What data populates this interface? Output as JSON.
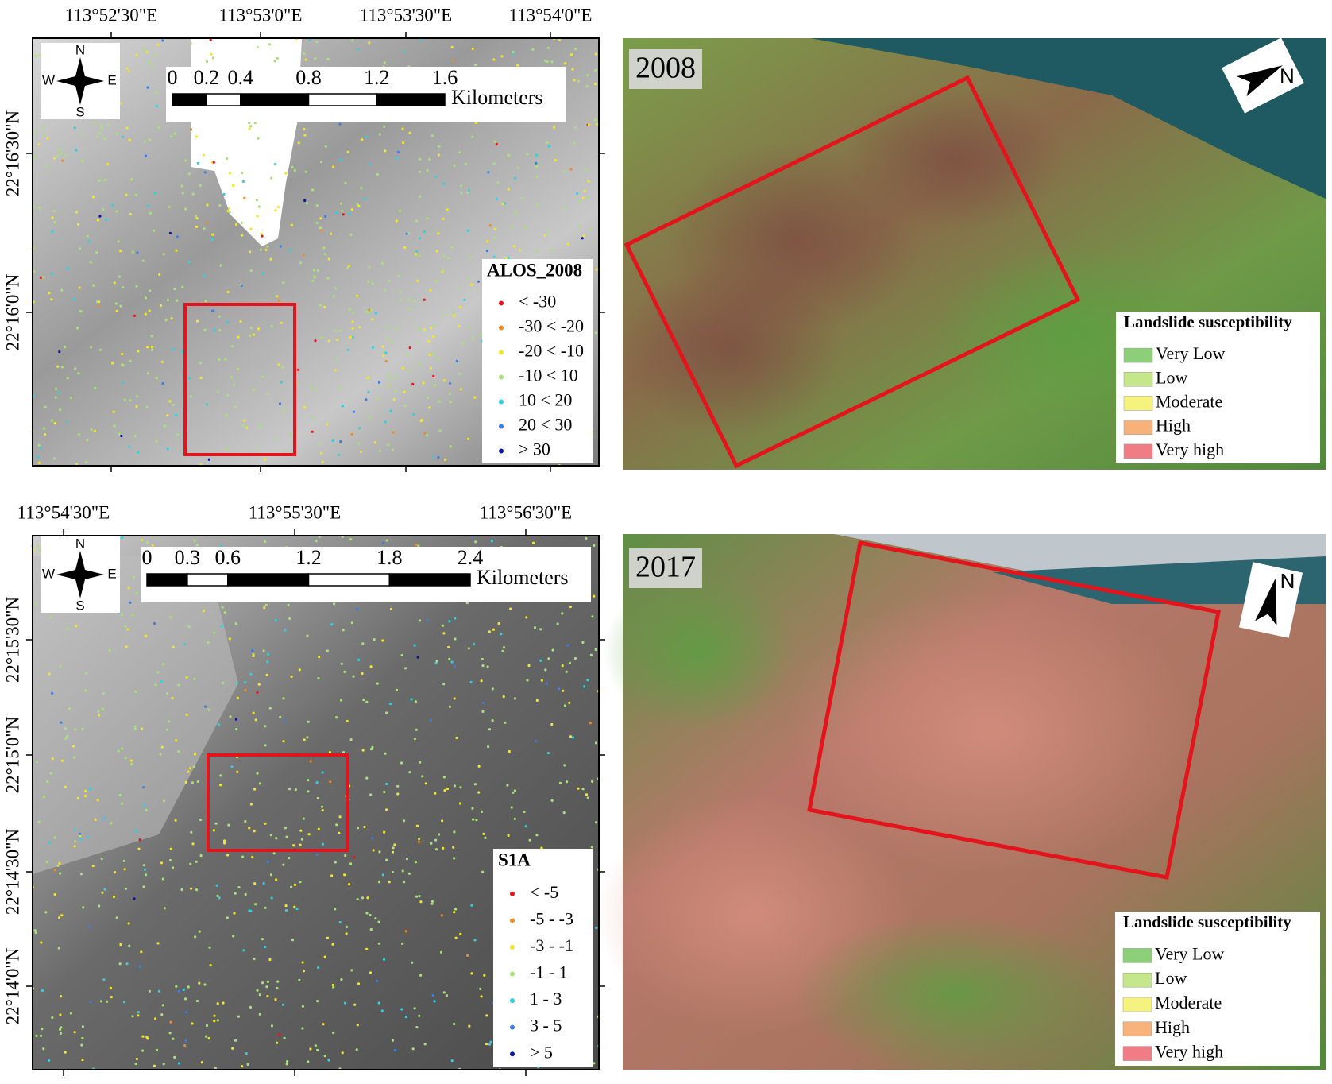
{
  "panels": [
    {
      "lon_labels": [
        "113°52'30\"E",
        "113°53'0\"E",
        "113°53'30\"E",
        "113°54'0\"E"
      ],
      "lat_labels": [
        "22°16'30\"N",
        "22°16'0\"N"
      ],
      "scale_labels": [
        0,
        0.2,
        0.4,
        0.8,
        1.2,
        1.6
      ],
      "scale_unit": "Kilometers",
      "compass": {
        "n": "N",
        "s": "S",
        "w": "W",
        "e": "E"
      },
      "legend": {
        "title": "ALOS_2008",
        "items": [
          {
            "label": "< -30",
            "color": "#e8141c"
          },
          {
            "label": "-30 < -20",
            "color": "#f08a24"
          },
          {
            "label": "-20 < -10",
            "color": "#f2e52a"
          },
          {
            "label": "-10 < 10",
            "color": "#a8e07a"
          },
          {
            "label": "10 < 20",
            "color": "#2fd0e0"
          },
          {
            "label": "20 < 30",
            "color": "#3a7ee8"
          },
          {
            "label": "> 30",
            "color": "#0a14a8"
          }
        ]
      }
    },
    {
      "year": "2008",
      "north": "N",
      "legend": {
        "title": "Landslide susceptibility",
        "items": [
          {
            "label": "Very Low",
            "color": "#8ccf78"
          },
          {
            "label": "Low",
            "color": "#c5e68a"
          },
          {
            "label": "Moderate",
            "color": "#f6f27e"
          },
          {
            "label": "High",
            "color": "#f6b27a"
          },
          {
            "label": "Very high",
            "color": "#f07d86"
          }
        ]
      }
    },
    {
      "lon_labels": [
        "113°54'30\"E",
        "113°55'30\"E",
        "113°56'30\"E"
      ],
      "lat_labels": [
        "22°15'30\"N",
        "22°15'0\"N",
        "22°14'30\"N",
        "22°14'0\"N"
      ],
      "scale_labels": [
        0,
        0.3,
        0.6,
        1.2,
        1.8,
        2.4
      ],
      "scale_unit": "Kilometers",
      "compass": {
        "n": "N",
        "s": "S",
        "w": "W",
        "e": "E"
      },
      "legend": {
        "title": "S1A",
        "items": [
          {
            "label": "< -5",
            "color": "#e8141c"
          },
          {
            "label": "-5 - -3",
            "color": "#f08a24"
          },
          {
            "label": "-3 - -1",
            "color": "#f2e52a"
          },
          {
            "label": "-1 - 1",
            "color": "#a8e07a"
          },
          {
            "label": "1 - 3",
            "color": "#2fd0e0"
          },
          {
            "label": "3 - 5",
            "color": "#3a7ee8"
          },
          {
            "label": "> 5",
            "color": "#0a14a8"
          }
        ]
      }
    },
    {
      "year": "2017",
      "north": "N",
      "legend": {
        "title": "Landslide susceptibility",
        "items": [
          {
            "label": "Very Low",
            "color": "#8ccf78"
          },
          {
            "label": "Low",
            "color": "#c5e68a"
          },
          {
            "label": "Moderate",
            "color": "#f6f27e"
          },
          {
            "label": "High",
            "color": "#f6b27a"
          },
          {
            "label": "Very high",
            "color": "#f07d86"
          }
        ]
      }
    }
  ]
}
